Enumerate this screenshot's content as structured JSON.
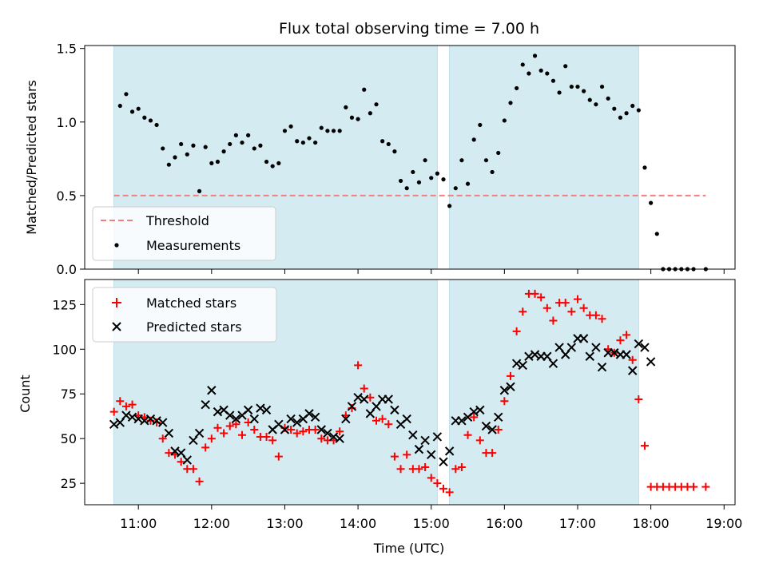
{
  "chart_data": [
    {
      "type": "scatter",
      "title": "Flux total observing time = 7.00 h",
      "xlabel": "",
      "ylabel": "Matched/Predicted stars",
      "xlim": [
        "10:16",
        "19:09"
      ],
      "ylim": [
        0,
        1.52
      ],
      "yticks": [
        0.0,
        0.5,
        1.0,
        1.5
      ],
      "ytick_labels": [
        "0.0",
        "0.5",
        "1.0",
        "1.5"
      ],
      "shaded_spans": [
        [
          "10:40",
          "15:05"
        ],
        [
          "15:15",
          "17:50"
        ]
      ],
      "shade_color": "#d4ebf2",
      "grid": false,
      "legend_position": "lower-left",
      "threshold": {
        "name": "Threshold",
        "value": 0.5,
        "x_range": [
          "10:40",
          "18:45"
        ],
        "color": "#f08080"
      },
      "series": [
        {
          "name": "Measurements",
          "color": "#000000",
          "x": [
            "10:45",
            "10:50",
            "10:55",
            "11:00",
            "11:05",
            "11:10",
            "11:15",
            "11:20",
            "11:25",
            "11:30",
            "11:35",
            "11:40",
            "11:45",
            "11:50",
            "11:55",
            "12:00",
            "12:05",
            "12:10",
            "12:15",
            "12:20",
            "12:25",
            "12:30",
            "12:35",
            "12:40",
            "12:45",
            "12:50",
            "12:55",
            "13:00",
            "13:05",
            "13:10",
            "13:15",
            "13:20",
            "13:25",
            "13:30",
            "13:35",
            "13:40",
            "13:45",
            "13:50",
            "13:55",
            "14:00",
            "14:05",
            "14:10",
            "14:15",
            "14:20",
            "14:25",
            "14:30",
            "14:35",
            "14:40",
            "14:45",
            "14:50",
            "14:55",
            "15:00",
            "15:05",
            "15:10",
            "15:15",
            "15:20",
            "15:25",
            "15:30",
            "15:35",
            "15:40",
            "15:45",
            "15:50",
            "15:55",
            "16:00",
            "16:05",
            "16:10",
            "16:15",
            "16:20",
            "16:25",
            "16:30",
            "16:35",
            "16:40",
            "16:45",
            "16:50",
            "16:55",
            "17:00",
            "17:05",
            "17:10",
            "17:15",
            "17:20",
            "17:25",
            "17:30",
            "17:35",
            "17:40",
            "17:45",
            "17:50",
            "17:55",
            "18:00",
            "18:05",
            "18:10",
            "18:15",
            "18:20",
            "18:25",
            "18:30",
            "18:35",
            "18:45"
          ],
          "y": [
            1.11,
            1.19,
            1.07,
            1.09,
            1.03,
            1.01,
            0.98,
            0.82,
            0.71,
            0.76,
            0.85,
            0.78,
            0.84,
            0.53,
            0.83,
            0.72,
            0.73,
            0.8,
            0.85,
            0.91,
            0.86,
            0.91,
            0.82,
            0.84,
            0.73,
            0.7,
            0.72,
            0.94,
            0.97,
            0.87,
            0.86,
            0.89,
            0.86,
            0.96,
            0.94,
            0.94,
            0.94,
            1.1,
            1.03,
            1.02,
            1.22,
            1.06,
            1.12,
            0.87,
            0.85,
            0.8,
            0.6,
            0.55,
            0.66,
            0.59,
            0.74,
            0.62,
            0.65,
            0.61,
            0.43,
            0.55,
            0.74,
            0.58,
            0.88,
            0.98,
            0.74,
            0.66,
            0.79,
            1.01,
            1.13,
            1.23,
            1.39,
            1.33,
            1.45,
            1.35,
            1.33,
            1.28,
            1.2,
            1.38,
            1.24,
            1.24,
            1.21,
            1.15,
            1.12,
            1.24,
            1.16,
            1.09,
            1.03,
            1.06,
            1.11,
            1.08,
            0.69,
            0.45,
            0.24,
            0.0,
            0.0,
            0.0,
            0.0,
            0.0,
            0.0,
            0.0
          ]
        }
      ]
    },
    {
      "type": "scatter",
      "title": "",
      "xlabel": "Time (UTC)",
      "ylabel": "Count",
      "xlim": [
        "10:16",
        "19:09"
      ],
      "ylim": [
        13,
        139
      ],
      "yticks": [
        25,
        50,
        75,
        100,
        125
      ],
      "ytick_labels": [
        "25",
        "50",
        "75",
        "100",
        "125"
      ],
      "xticks": [
        "11:00",
        "12:00",
        "13:00",
        "14:00",
        "15:00",
        "16:00",
        "17:00",
        "18:00",
        "19:00"
      ],
      "shaded_spans": [
        [
          "10:40",
          "15:05"
        ],
        [
          "15:15",
          "17:50"
        ]
      ],
      "shade_color": "#d4ebf2",
      "grid": false,
      "legend_position": "upper-left",
      "series": [
        {
          "name": "Matched stars",
          "color": "#ff0000",
          "marker": "plus",
          "x": [
            "10:40",
            "10:45",
            "10:50",
            "10:55",
            "11:00",
            "11:05",
            "11:10",
            "11:15",
            "11:20",
            "11:25",
            "11:30",
            "11:35",
            "11:40",
            "11:45",
            "11:50",
            "11:55",
            "12:00",
            "12:05",
            "12:10",
            "12:15",
            "12:20",
            "12:25",
            "12:30",
            "12:35",
            "12:40",
            "12:45",
            "12:50",
            "12:55",
            "13:00",
            "13:05",
            "13:10",
            "13:15",
            "13:20",
            "13:25",
            "13:30",
            "13:35",
            "13:40",
            "13:45",
            "13:50",
            "13:55",
            "14:00",
            "14:05",
            "14:10",
            "14:15",
            "14:20",
            "14:25",
            "14:30",
            "14:35",
            "14:40",
            "14:45",
            "14:50",
            "14:55",
            "15:00",
            "15:05",
            "15:10",
            "15:15",
            "15:20",
            "15:25",
            "15:30",
            "15:35",
            "15:40",
            "15:45",
            "15:50",
            "15:55",
            "16:00",
            "16:05",
            "16:10",
            "16:15",
            "16:20",
            "16:25",
            "16:30",
            "16:35",
            "16:40",
            "16:45",
            "16:50",
            "16:55",
            "17:00",
            "17:05",
            "17:10",
            "17:15",
            "17:20",
            "17:25",
            "17:30",
            "17:35",
            "17:40",
            "17:45",
            "17:50",
            "17:55",
            "18:00",
            "18:05",
            "18:10",
            "18:15",
            "18:20",
            "18:25",
            "18:30",
            "18:35",
            "18:45"
          ],
          "y": [
            65,
            71,
            68,
            69,
            63,
            62,
            60,
            59,
            50,
            42,
            41,
            37,
            33,
            33,
            26,
            45,
            50,
            56,
            53,
            57,
            58,
            52,
            59,
            55,
            51,
            51,
            49,
            40,
            56,
            55,
            53,
            54,
            55,
            55,
            50,
            49,
            49,
            54,
            63,
            67,
            91,
            78,
            73,
            60,
            61,
            58,
            40,
            33,
            41,
            33,
            33,
            34,
            28,
            25,
            22,
            20,
            33,
            34,
            52,
            62,
            49,
            42,
            42,
            55,
            71,
            85,
            110,
            121,
            131,
            131,
            129,
            123,
            116,
            126,
            126,
            121,
            128,
            123,
            119,
            119,
            117,
            100,
            98,
            105,
            108,
            94,
            72,
            46,
            23,
            23,
            23,
            23,
            23,
            23,
            23,
            23,
            23
          ]
        },
        {
          "name": "Predicted stars",
          "color": "#000000",
          "marker": "x",
          "x": [
            "10:40",
            "10:45",
            "10:50",
            "10:55",
            "11:00",
            "11:05",
            "11:10",
            "11:15",
            "11:20",
            "11:25",
            "11:30",
            "11:35",
            "11:40",
            "11:45",
            "11:50",
            "11:55",
            "12:00",
            "12:05",
            "12:10",
            "12:15",
            "12:20",
            "12:25",
            "12:30",
            "12:35",
            "12:40",
            "12:45",
            "12:50",
            "12:55",
            "13:00",
            "13:05",
            "13:10",
            "13:15",
            "13:20",
            "13:25",
            "13:30",
            "13:35",
            "13:40",
            "13:45",
            "13:50",
            "13:55",
            "14:00",
            "14:05",
            "14:10",
            "14:15",
            "14:20",
            "14:25",
            "14:30",
            "14:35",
            "14:40",
            "14:45",
            "14:50",
            "14:55",
            "15:00",
            "15:05",
            "15:10",
            "15:15",
            "15:20",
            "15:25",
            "15:30",
            "15:35",
            "15:40",
            "15:45",
            "15:50",
            "15:55",
            "16:00",
            "16:05",
            "16:10",
            "16:15",
            "16:20",
            "16:25",
            "16:30",
            "16:35",
            "16:40",
            "16:45",
            "16:50",
            "16:55",
            "17:00",
            "17:05",
            "17:10",
            "17:15",
            "17:20",
            "17:25",
            "17:30",
            "17:35",
            "17:40",
            "17:45",
            "17:50",
            "17:55",
            "18:00"
          ],
          "y": [
            58,
            59,
            63,
            62,
            61,
            60,
            61,
            60,
            59,
            53,
            43,
            42,
            38,
            49,
            53,
            69,
            77,
            65,
            66,
            63,
            61,
            63,
            66,
            61,
            67,
            66,
            55,
            58,
            55,
            61,
            59,
            61,
            64,
            62,
            55,
            53,
            51,
            50,
            61,
            68,
            73,
            72,
            64,
            68,
            72,
            72,
            66,
            58,
            61,
            52,
            44,
            49,
            41,
            51,
            37,
            43,
            60,
            60,
            62,
            65,
            66,
            57,
            55,
            62,
            77,
            79,
            92,
            91,
            96,
            97,
            96,
            96,
            92,
            101,
            97,
            101,
            106,
            106,
            96,
            101,
            90,
            98,
            98,
            97,
            97,
            88,
            103,
            101,
            93
          ]
        }
      ]
    }
  ]
}
